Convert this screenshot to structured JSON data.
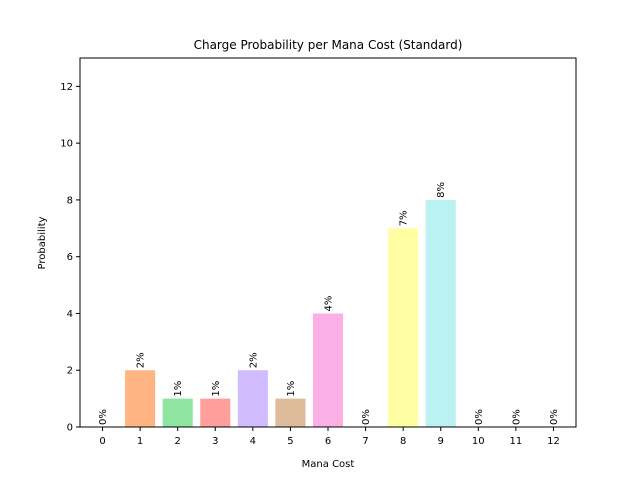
{
  "chart_data": {
    "type": "bar",
    "title": "Charge Probability per Mana Cost (Standard)",
    "xlabel": "Mana Cost",
    "ylabel": "Probability",
    "categories": [
      "0",
      "1",
      "2",
      "3",
      "4",
      "5",
      "6",
      "7",
      "8",
      "9",
      "10",
      "11",
      "12"
    ],
    "values": [
      0,
      2,
      1,
      1,
      2,
      1,
      4,
      0,
      7,
      8,
      0,
      0,
      0
    ],
    "data_labels": [
      "0%",
      "2%",
      "1%",
      "1%",
      "2%",
      "1%",
      "4%",
      "0%",
      "7%",
      "8%",
      "0%",
      "0%",
      "0%"
    ],
    "ylim": [
      0,
      13
    ],
    "yticks": [
      0,
      2,
      4,
      6,
      8,
      10,
      12
    ],
    "grid": false,
    "colors": [
      "#a1c9f4",
      "#ffb482",
      "#8de5a1",
      "#ff9f9b",
      "#d0bbff",
      "#debb9b",
      "#fab0e4",
      "#cfcfcf",
      "#fffea3",
      "#b9f2f0",
      "#a1c9f4",
      "#ffb482",
      "#8de5a1"
    ]
  }
}
